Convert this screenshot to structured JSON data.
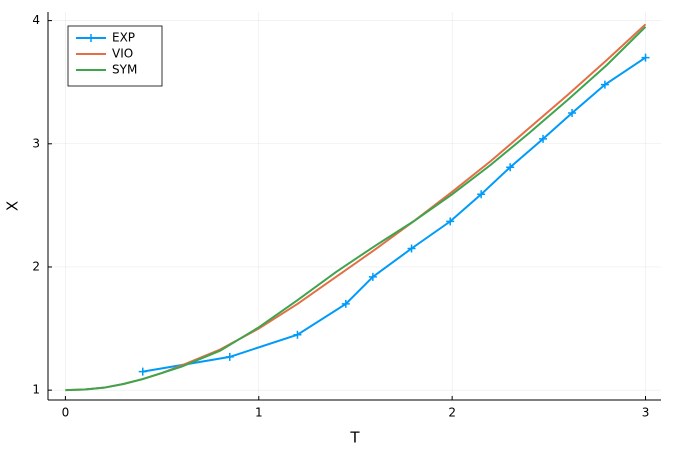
{
  "chart_data": {
    "type": "line",
    "x_label": "T",
    "y_label": "X",
    "xlim": [
      -0.09,
      3.08
    ],
    "ylim": [
      0.92,
      4.07
    ],
    "xticks": [
      0,
      1,
      2,
      3
    ],
    "yticks": [
      1,
      2,
      3,
      4
    ],
    "grid": true,
    "legend": "top-left",
    "series": [
      {
        "name": "EXP",
        "color": "#009af9",
        "marker": "+",
        "x": [
          0.4,
          0.85,
          1.2,
          1.45,
          1.59,
          1.79,
          1.99,
          2.15,
          2.3,
          2.47,
          2.62,
          2.79,
          3.0
        ],
        "values": [
          1.15,
          1.27,
          1.45,
          1.7,
          1.92,
          2.15,
          2.37,
          2.59,
          2.81,
          3.04,
          3.25,
          3.48,
          3.7
        ]
      },
      {
        "name": "VIO",
        "color": "#e26f46",
        "x": [
          0,
          0.1,
          0.2,
          0.3,
          0.4,
          0.5,
          0.6,
          0.8,
          1.0,
          1.2,
          1.4,
          1.6,
          1.8,
          2.0,
          2.2,
          2.4,
          2.6,
          2.8,
          3.0
        ],
        "values": [
          1.0,
          1.005,
          1.02,
          1.05,
          1.09,
          1.14,
          1.2,
          1.33,
          1.5,
          1.7,
          1.92,
          2.14,
          2.37,
          2.61,
          2.86,
          3.13,
          3.4,
          3.68,
          3.97
        ]
      },
      {
        "name": "SYM",
        "color": "#3ea44e",
        "x": [
          0,
          0.1,
          0.2,
          0.3,
          0.4,
          0.5,
          0.6,
          0.8,
          1.0,
          1.2,
          1.4,
          1.6,
          1.8,
          2.0,
          2.2,
          2.4,
          2.6,
          2.8,
          3.0
        ],
        "values": [
          1.0,
          1.005,
          1.02,
          1.05,
          1.09,
          1.14,
          1.19,
          1.32,
          1.51,
          1.73,
          1.96,
          2.17,
          2.37,
          2.59,
          2.83,
          3.09,
          3.36,
          3.64,
          3.95
        ]
      }
    ]
  }
}
